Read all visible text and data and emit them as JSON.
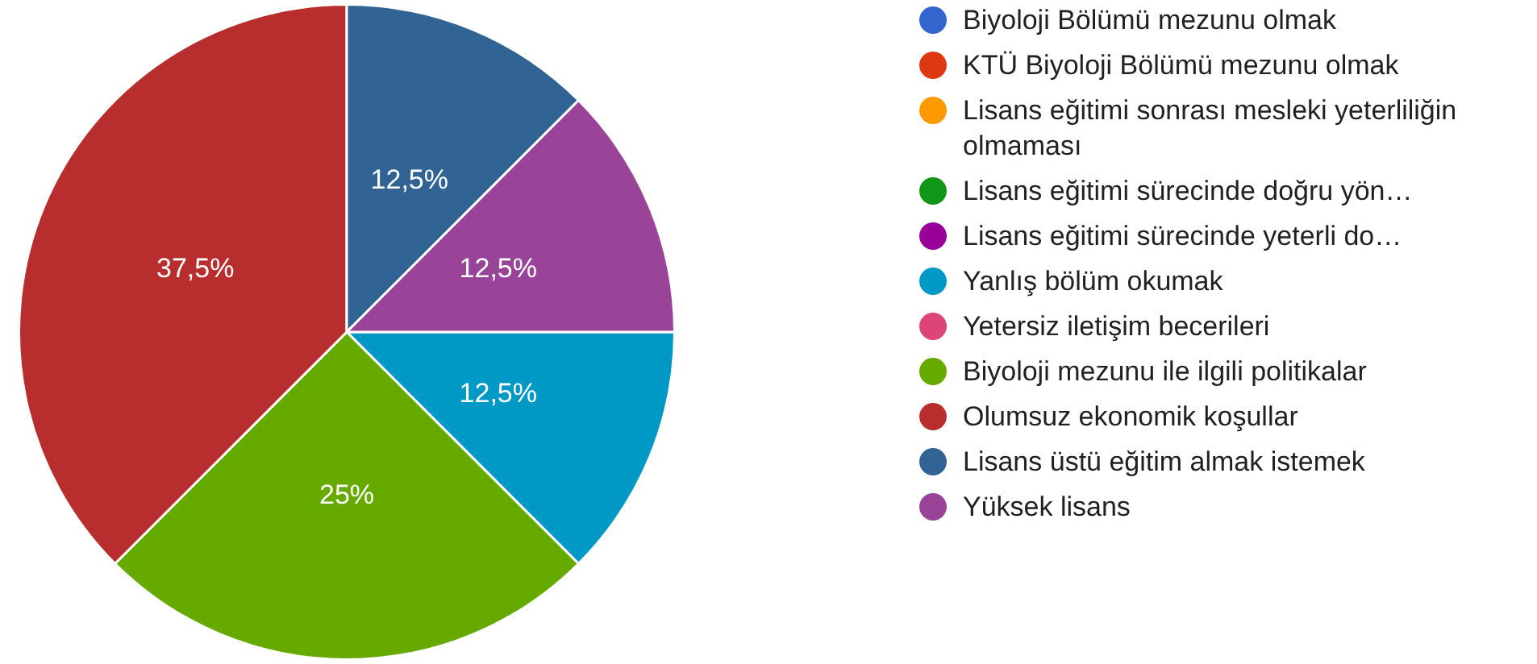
{
  "chart_data": {
    "type": "pie",
    "legend": "right",
    "categories": [
      "Biyoloji Bölümü mezunu olmak",
      "KTÜ Biyoloji Bölümü mezunu olmak",
      "Lisans eğitimi sonrası mesleki yeterliliğin olmaması",
      "Lisans eğitimi sürecinde doğru yön…",
      "Lisans eğitimi sürecinde yeterli do…",
      "Yanlış bölüm okumak",
      "Yetersiz iletişim becerileri",
      "Biyoloji mezunu ile ilgili politikalar",
      "Olumsuz ekonomik koşullar",
      "Lisans üstü eğitim almak istemek",
      "Yüksek lisans"
    ],
    "values": [
      0,
      0,
      0,
      0,
      0,
      12.5,
      0,
      25,
      37.5,
      12.5,
      12.5
    ],
    "value_labels": [
      null,
      null,
      null,
      null,
      null,
      "12,5%",
      null,
      "25%",
      "37,5%",
      "12,5%",
      "12,5%"
    ],
    "colors": [
      "#3366cc",
      "#dc3912",
      "#ff9900",
      "#109618",
      "#990099",
      "#0099c6",
      "#dd4477",
      "#66aa00",
      "#b82e2e",
      "#316395",
      "#994499"
    ]
  }
}
